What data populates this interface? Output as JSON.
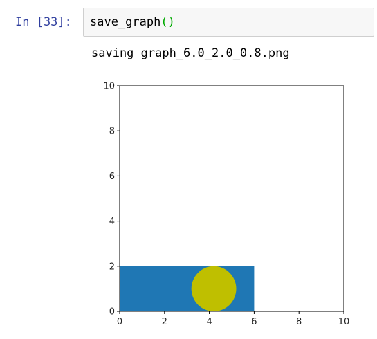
{
  "cell": {
    "prompt": "In [33]:",
    "code_name": "save_graph",
    "code_parens": "()"
  },
  "output": {
    "stdout": "saving graph_6.0_2.0_0.8.png"
  },
  "chart_data": {
    "type": "shapes",
    "xlim": [
      0,
      10
    ],
    "ylim": [
      0,
      10
    ],
    "xticks": [
      "0",
      "2",
      "4",
      "6",
      "8",
      "10"
    ],
    "yticks": [
      "0",
      "2",
      "4",
      "6",
      "8",
      "10"
    ],
    "grid": false,
    "shapes": [
      {
        "kind": "rectangle",
        "x": 0,
        "y": 0,
        "width": 6.0,
        "height": 2.0,
        "color": "#1f77b4"
      },
      {
        "kind": "circle",
        "cx": 4.2,
        "cy": 1.0,
        "r": 1.0,
        "color": "#bfbf00"
      }
    ]
  }
}
